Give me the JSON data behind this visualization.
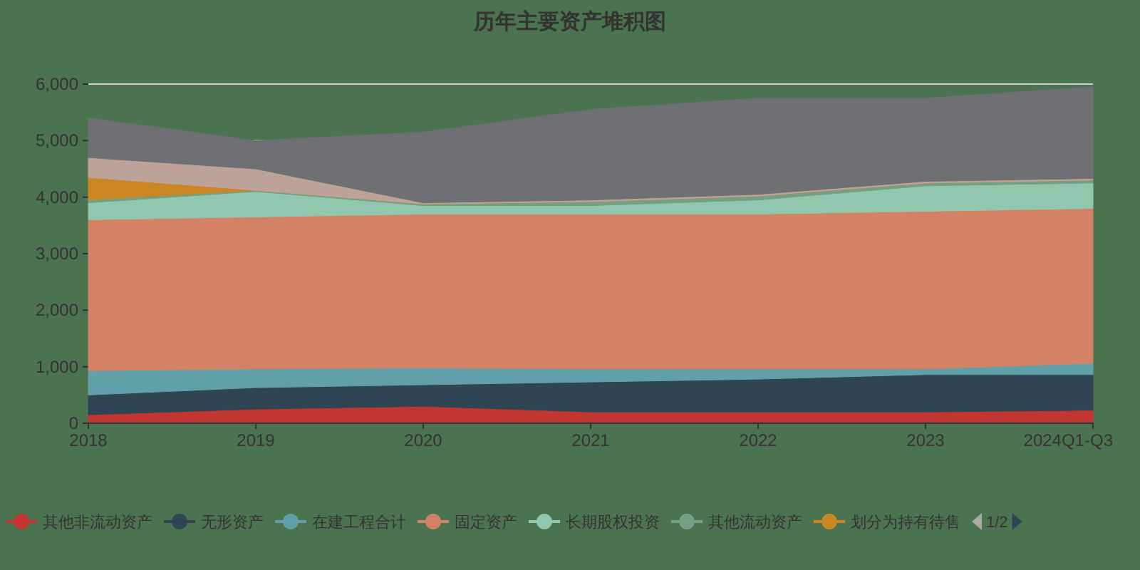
{
  "chart_data": {
    "type": "area",
    "stacked": true,
    "title": "历年主要资产堆积图",
    "categories": [
      "2018",
      "2019",
      "2020",
      "2021",
      "2022",
      "2023",
      "2024Q1-Q3"
    ],
    "ylim": [
      0,
      6000
    ],
    "yticks": [
      0,
      {
        "value": 1000,
        "label": "1,000"
      },
      {
        "value": 2000,
        "label": "2,000"
      },
      {
        "value": 3000,
        "label": "3,000"
      },
      {
        "value": 4000,
        "label": "4,000"
      },
      {
        "value": 5000,
        "label": "5,000"
      },
      {
        "value": 6000,
        "label": "6,000"
      }
    ],
    "grid": "y",
    "legend": "bottom",
    "annotations": [
      "1/2"
    ],
    "series": [
      {
        "name": "其他非流动资产",
        "color": "#c23531",
        "values": [
          150,
          250,
          300,
          200,
          200,
          200,
          230
        ]
      },
      {
        "name": "无形资产",
        "color": "#2f4554",
        "values": [
          350,
          380,
          380,
          530,
          580,
          660,
          630
        ]
      },
      {
        "name": "在建工程合计",
        "color": "#61a0a8",
        "values": [
          430,
          330,
          300,
          230,
          180,
          100,
          200
        ]
      },
      {
        "name": "固定资产",
        "color": "#d48265",
        "values": [
          2670,
          2690,
          2720,
          2740,
          2740,
          2790,
          2740
        ]
      },
      {
        "name": "长期股权投资",
        "color": "#91c7ae",
        "values": [
          300,
          450,
          150,
          150,
          250,
          450,
          450
        ]
      },
      {
        "name": "其他流动资产",
        "color": "#749f83",
        "values": [
          50,
          20,
          30,
          70,
          70,
          50,
          50
        ]
      },
      {
        "name": "划分为持有待售",
        "color": "#ca8622",
        "values": [
          400,
          0,
          0,
          0,
          0,
          0,
          0
        ]
      },
      {
        "color": "#bda29a",
        "values": [
          350,
          380,
          20,
          30,
          30,
          30,
          30
        ]
      },
      {
        "color": "#6e7074",
        "values": [
          700,
          500,
          1250,
          1600,
          1700,
          1470,
          1620
        ]
      }
    ]
  }
}
